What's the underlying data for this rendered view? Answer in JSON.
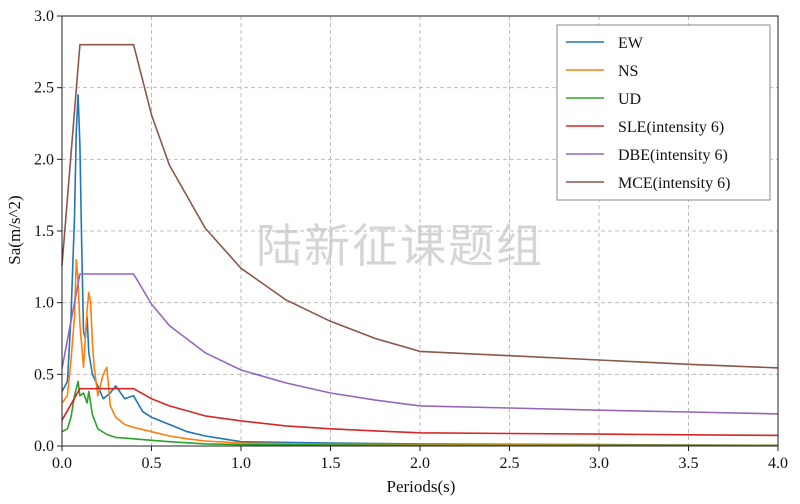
{
  "chart_data": {
    "type": "line",
    "xlabel": "Periods(s)",
    "ylabel": "Sa(m/s^2)",
    "xlim": [
      0,
      4
    ],
    "ylim": [
      0,
      3
    ],
    "x_ticks": [
      "0.0",
      "0.5",
      "1.0",
      "1.5",
      "2.0",
      "2.5",
      "3.0",
      "3.5",
      "4.0"
    ],
    "y_ticks": [
      "0.0",
      "0.5",
      "1.0",
      "1.5",
      "2.0",
      "2.5",
      "3.0"
    ],
    "grid": true,
    "legend_position": "top-right",
    "watermark": "陆新征课题组",
    "series": [
      {
        "name": "EW",
        "color": "#1f77b4",
        "points": [
          [
            0,
            0.38
          ],
          [
            0.03,
            0.45
          ],
          [
            0.05,
            0.9
          ],
          [
            0.07,
            1.6
          ],
          [
            0.08,
            2.2
          ],
          [
            0.09,
            2.45
          ],
          [
            0.1,
            2.1
          ],
          [
            0.11,
            1.4
          ],
          [
            0.12,
            0.8
          ],
          [
            0.13,
            0.75
          ],
          [
            0.14,
            0.9
          ],
          [
            0.15,
            0.65
          ],
          [
            0.17,
            0.5
          ],
          [
            0.2,
            0.42
          ],
          [
            0.23,
            0.33
          ],
          [
            0.27,
            0.37
          ],
          [
            0.3,
            0.42
          ],
          [
            0.35,
            0.33
          ],
          [
            0.4,
            0.35
          ],
          [
            0.45,
            0.24
          ],
          [
            0.5,
            0.2
          ],
          [
            0.6,
            0.15
          ],
          [
            0.7,
            0.1
          ],
          [
            0.8,
            0.07
          ],
          [
            0.9,
            0.05
          ],
          [
            1.0,
            0.03
          ],
          [
            1.5,
            0.02
          ],
          [
            2.0,
            0.015
          ],
          [
            3.0,
            0.01
          ],
          [
            4.0,
            0.005
          ]
        ]
      },
      {
        "name": "NS",
        "color": "#ff7f0e",
        "points": [
          [
            0,
            0.3
          ],
          [
            0.03,
            0.35
          ],
          [
            0.05,
            0.6
          ],
          [
            0.07,
            0.9
          ],
          [
            0.08,
            1.3
          ],
          [
            0.09,
            1.15
          ],
          [
            0.1,
            0.85
          ],
          [
            0.12,
            0.55
          ],
          [
            0.13,
            0.75
          ],
          [
            0.14,
            0.95
          ],
          [
            0.15,
            1.07
          ],
          [
            0.16,
            1.0
          ],
          [
            0.17,
            0.72
          ],
          [
            0.18,
            0.55
          ],
          [
            0.2,
            0.35
          ],
          [
            0.23,
            0.5
          ],
          [
            0.25,
            0.55
          ],
          [
            0.27,
            0.28
          ],
          [
            0.3,
            0.2
          ],
          [
            0.35,
            0.15
          ],
          [
            0.4,
            0.13
          ],
          [
            0.5,
            0.1
          ],
          [
            0.6,
            0.07
          ],
          [
            0.7,
            0.05
          ],
          [
            0.8,
            0.035
          ],
          [
            1.0,
            0.02
          ],
          [
            1.5,
            0.012
          ],
          [
            2.0,
            0.01
          ],
          [
            4.0,
            0.005
          ]
        ]
      },
      {
        "name": "UD",
        "color": "#2ca02c",
        "points": [
          [
            0,
            0.1
          ],
          [
            0.03,
            0.12
          ],
          [
            0.05,
            0.2
          ],
          [
            0.07,
            0.35
          ],
          [
            0.09,
            0.45
          ],
          [
            0.1,
            0.35
          ],
          [
            0.12,
            0.37
          ],
          [
            0.14,
            0.3
          ],
          [
            0.15,
            0.38
          ],
          [
            0.17,
            0.22
          ],
          [
            0.2,
            0.12
          ],
          [
            0.25,
            0.08
          ],
          [
            0.3,
            0.06
          ],
          [
            0.4,
            0.05
          ],
          [
            0.5,
            0.04
          ],
          [
            0.6,
            0.03
          ],
          [
            0.8,
            0.015
          ],
          [
            1.0,
            0.01
          ],
          [
            2.0,
            0.005
          ],
          [
            4.0,
            0.003
          ]
        ]
      },
      {
        "name": "SLE(intensity 6)",
        "color": "#d62728",
        "points": [
          [
            0,
            0.18
          ],
          [
            0.1,
            0.4
          ],
          [
            0.4,
            0.4
          ],
          [
            0.5,
            0.33
          ],
          [
            0.6,
            0.28
          ],
          [
            0.8,
            0.21
          ],
          [
            1.0,
            0.175
          ],
          [
            1.25,
            0.14
          ],
          [
            1.5,
            0.12
          ],
          [
            1.75,
            0.105
          ],
          [
            2.0,
            0.092
          ],
          [
            2.5,
            0.087
          ],
          [
            3.0,
            0.083
          ],
          [
            3.5,
            0.078
          ],
          [
            4.0,
            0.074
          ]
        ]
      },
      {
        "name": "DBE(intensity 6)",
        "color": "#9467bd",
        "points": [
          [
            0,
            0.54
          ],
          [
            0.1,
            1.2
          ],
          [
            0.4,
            1.2
          ],
          [
            0.5,
            0.99
          ],
          [
            0.6,
            0.84
          ],
          [
            0.8,
            0.65
          ],
          [
            1.0,
            0.53
          ],
          [
            1.25,
            0.44
          ],
          [
            1.5,
            0.37
          ],
          [
            1.75,
            0.32
          ],
          [
            2.0,
            0.28
          ],
          [
            2.5,
            0.265
          ],
          [
            3.0,
            0.25
          ],
          [
            3.5,
            0.237
          ],
          [
            4.0,
            0.224
          ]
        ]
      },
      {
        "name": "MCE(intensity 6)",
        "color": "#8c564b",
        "points": [
          [
            0,
            1.26
          ],
          [
            0.1,
            2.8
          ],
          [
            0.4,
            2.8
          ],
          [
            0.5,
            2.31
          ],
          [
            0.6,
            1.96
          ],
          [
            0.8,
            1.52
          ],
          [
            1.0,
            1.24
          ],
          [
            1.25,
            1.02
          ],
          [
            1.5,
            0.87
          ],
          [
            1.75,
            0.75
          ],
          [
            2.0,
            0.66
          ],
          [
            2.5,
            0.63
          ],
          [
            3.0,
            0.6
          ],
          [
            3.5,
            0.57
          ],
          [
            4.0,
            0.545
          ]
        ]
      }
    ]
  }
}
